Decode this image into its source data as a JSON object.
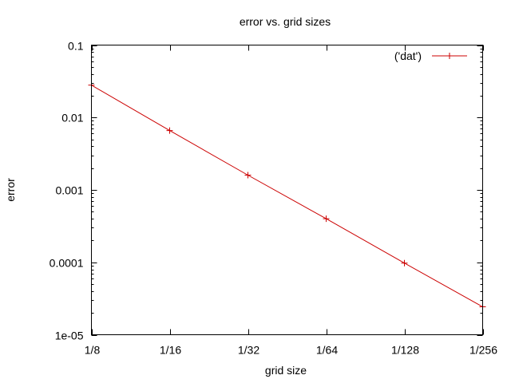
{
  "chart_data": {
    "type": "line",
    "title": "error vs. grid sizes",
    "xlabel": "grid size",
    "ylabel": "error",
    "x_scale": "log2",
    "y_scale": "log10",
    "x_ticks": [
      {
        "value": 0.125,
        "label": "1/8"
      },
      {
        "value": 0.0625,
        "label": "1/16"
      },
      {
        "value": 0.03125,
        "label": "1/32"
      },
      {
        "value": 0.015625,
        "label": "1/64"
      },
      {
        "value": 0.0078125,
        "label": "1/128"
      },
      {
        "value": 0.00390625,
        "label": "1/256"
      }
    ],
    "y_ticks": [
      {
        "value": 0.1,
        "label": "0.1"
      },
      {
        "value": 0.01,
        "label": "0.01"
      },
      {
        "value": 0.001,
        "label": "0.001"
      },
      {
        "value": 0.0001,
        "label": "0.0001"
      },
      {
        "value": 1e-05,
        "label": "1e-05"
      }
    ],
    "xlim": [
      0.125,
      0.00390625
    ],
    "ylim": [
      1e-05,
      0.1
    ],
    "grid": false,
    "legend": "top-right",
    "series": [
      {
        "name": "('dat')",
        "color": "#cc0000",
        "marker": "plus",
        "x": [
          0.125,
          0.0625,
          0.03125,
          0.015625,
          0.0078125,
          0.00390625
        ],
        "y": [
          0.028,
          0.0066,
          0.0016,
          0.0004,
          9.75e-05,
          2.43e-05
        ]
      }
    ]
  }
}
